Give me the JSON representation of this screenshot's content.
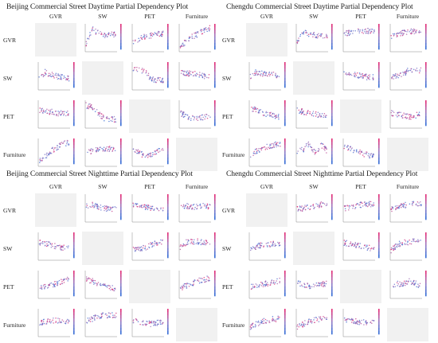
{
  "figure": {
    "variables": [
      "GVR",
      "SW",
      "PET",
      "Furniture"
    ],
    "point_colors": {
      "low": "#3b6fd6",
      "mid": "#9b7fc4",
      "high": "#e0307a"
    },
    "empty_cell_color": "#f1f1f1",
    "panels": [
      {
        "id": "bj-day",
        "title": "Beijing Commercial Street Daytime Partial Dependency Plot"
      },
      {
        "id": "cd-day",
        "title": "Chengdu Commercial Street Daytime Partial Dependency Plot"
      },
      {
        "id": "bj-night",
        "title": "Beijing Commercial Street Nighttime Partial Dependency Plot"
      },
      {
        "id": "cd-night",
        "title": "Chengdu Commercial Street Nighttime Partial Dependency Plot"
      }
    ]
  },
  "chart_data": {
    "type": "scatter",
    "layout": "4 panels, each a 4x4 grid of SHAP partial dependence scatter plots; diagonal cells empty",
    "variables": [
      "GVR",
      "SW",
      "PET",
      "Furniture"
    ],
    "cells": [
      {
        "panel": "bj-day",
        "row": "GVR",
        "col": "SW",
        "trend": [
          0.2,
          0.8,
          0.65,
          0.55,
          0.6,
          0.58
        ]
      },
      {
        "panel": "bj-day",
        "row": "GVR",
        "col": "PET",
        "trend": [
          0.3,
          0.4,
          0.5,
          0.55,
          0.6,
          0.62
        ]
      },
      {
        "panel": "bj-day",
        "row": "GVR",
        "col": "Furniture",
        "trend": [
          0.1,
          0.3,
          0.5,
          0.6,
          0.75,
          0.85
        ]
      },
      {
        "panel": "bj-day",
        "row": "SW",
        "col": "GVR",
        "trend": [
          0.3,
          0.6,
          0.5,
          0.45,
          0.4,
          0.35
        ]
      },
      {
        "panel": "bj-day",
        "row": "SW",
        "col": "PET",
        "trend": [
          0.7,
          0.7,
          0.6,
          0.35,
          0.3,
          0.3
        ]
      },
      {
        "panel": "bj-day",
        "row": "SW",
        "col": "Furniture",
        "trend": [
          0.6,
          0.55,
          0.55,
          0.5,
          0.45,
          0.45
        ]
      },
      {
        "panel": "bj-day",
        "row": "PET",
        "col": "GVR",
        "trend": [
          0.6,
          0.55,
          0.55,
          0.5,
          0.5,
          0.5
        ]
      },
      {
        "panel": "bj-day",
        "row": "PET",
        "col": "SW",
        "trend": [
          0.8,
          0.75,
          0.5,
          0.3,
          0.25,
          0.25
        ]
      },
      {
        "panel": "bj-day",
        "row": "PET",
        "col": "Furniture",
        "trend": [
          0.5,
          0.4,
          0.3,
          0.3,
          0.35,
          0.4
        ]
      },
      {
        "panel": "bj-day",
        "row": "Furniture",
        "col": "GVR",
        "trend": [
          0.1,
          0.3,
          0.5,
          0.65,
          0.8,
          0.85
        ]
      },
      {
        "panel": "bj-day",
        "row": "Furniture",
        "col": "SW",
        "trend": [
          0.4,
          0.5,
          0.55,
          0.6,
          0.6,
          0.55
        ]
      },
      {
        "panel": "bj-day",
        "row": "Furniture",
        "col": "PET",
        "trend": [
          0.5,
          0.45,
          0.3,
          0.35,
          0.5,
          0.55
        ]
      },
      {
        "panel": "cd-day",
        "row": "GVR",
        "col": "SW",
        "trend": [
          0.3,
          0.7,
          0.6,
          0.55,
          0.5,
          0.5
        ]
      },
      {
        "panel": "cd-day",
        "row": "GVR",
        "col": "PET",
        "trend": [
          0.6,
          0.65,
          0.7,
          0.7,
          0.72,
          0.7
        ]
      },
      {
        "panel": "cd-day",
        "row": "GVR",
        "col": "Furniture",
        "trend": [
          0.5,
          0.6,
          0.65,
          0.7,
          0.72,
          0.75
        ]
      },
      {
        "panel": "cd-day",
        "row": "SW",
        "col": "GVR",
        "trend": [
          0.4,
          0.6,
          0.55,
          0.5,
          0.5,
          0.45
        ]
      },
      {
        "panel": "cd-day",
        "row": "SW",
        "col": "PET",
        "trend": [
          0.6,
          0.55,
          0.5,
          0.45,
          0.4,
          0.4
        ]
      },
      {
        "panel": "cd-day",
        "row": "SW",
        "col": "Furniture",
        "trend": [
          0.4,
          0.45,
          0.5,
          0.7,
          0.65,
          0.7
        ]
      },
      {
        "panel": "cd-day",
        "row": "PET",
        "col": "GVR",
        "trend": [
          0.7,
          0.6,
          0.5,
          0.45,
          0.4,
          0.35
        ]
      },
      {
        "panel": "cd-day",
        "row": "PET",
        "col": "SW",
        "trend": [
          0.6,
          0.55,
          0.5,
          0.45,
          0.4,
          0.4
        ]
      },
      {
        "panel": "cd-day",
        "row": "PET",
        "col": "Furniture",
        "trend": [
          0.5,
          0.45,
          0.4,
          0.35,
          0.4,
          0.45
        ]
      },
      {
        "panel": "cd-day",
        "row": "Furniture",
        "col": "GVR",
        "trend": [
          0.3,
          0.5,
          0.6,
          0.7,
          0.75,
          0.8
        ]
      },
      {
        "panel": "cd-day",
        "row": "Furniture",
        "col": "SW",
        "trend": [
          0.5,
          0.55,
          0.8,
          0.4,
          0.75,
          0.5
        ]
      },
      {
        "panel": "cd-day",
        "row": "Furniture",
        "col": "PET",
        "trend": [
          0.7,
          0.6,
          0.5,
          0.4,
          0.35,
          0.3
        ]
      },
      {
        "panel": "bj-night",
        "row": "GVR",
        "col": "SW",
        "trend": [
          0.5,
          0.6,
          0.5,
          0.45,
          0.4,
          0.4
        ]
      },
      {
        "panel": "bj-night",
        "row": "GVR",
        "col": "PET",
        "trend": [
          0.55,
          0.5,
          0.5,
          0.45,
          0.45,
          0.4
        ]
      },
      {
        "panel": "bj-night",
        "row": "GVR",
        "col": "Furniture",
        "trend": [
          0.5,
          0.55,
          0.5,
          0.5,
          0.55,
          0.5
        ]
      },
      {
        "panel": "bj-night",
        "row": "SW",
        "col": "GVR",
        "trend": [
          0.6,
          0.55,
          0.5,
          0.45,
          0.4,
          0.4
        ]
      },
      {
        "panel": "bj-night",
        "row": "SW",
        "col": "PET",
        "trend": [
          0.3,
          0.35,
          0.4,
          0.5,
          0.6,
          0.65
        ]
      },
      {
        "panel": "bj-night",
        "row": "SW",
        "col": "Furniture",
        "trend": [
          0.4,
          0.6,
          0.65,
          0.65,
          0.6,
          0.6
        ]
      },
      {
        "panel": "bj-night",
        "row": "PET",
        "col": "GVR",
        "trend": [
          0.3,
          0.35,
          0.4,
          0.5,
          0.6,
          0.7
        ]
      },
      {
        "panel": "bj-night",
        "row": "PET",
        "col": "SW",
        "trend": [
          0.65,
          0.6,
          0.5,
          0.45,
          0.35,
          0.3
        ]
      },
      {
        "panel": "bj-night",
        "row": "PET",
        "col": "Furniture",
        "trend": [
          0.3,
          0.4,
          0.5,
          0.6,
          0.65,
          0.7
        ]
      },
      {
        "panel": "bj-night",
        "row": "Furniture",
        "col": "GVR",
        "trend": [
          0.4,
          0.5,
          0.55,
          0.55,
          0.5,
          0.5
        ]
      },
      {
        "panel": "bj-night",
        "row": "Furniture",
        "col": "SW",
        "trend": [
          0.5,
          0.6,
          0.7,
          0.75,
          0.75,
          0.75
        ]
      },
      {
        "panel": "bj-night",
        "row": "Furniture",
        "col": "PET",
        "trend": [
          0.55,
          0.5,
          0.45,
          0.4,
          0.45,
          0.5
        ]
      },
      {
        "panel": "cd-night",
        "row": "GVR",
        "col": "SW",
        "trend": [
          0.4,
          0.45,
          0.5,
          0.55,
          0.6,
          0.6
        ]
      },
      {
        "panel": "cd-night",
        "row": "GVR",
        "col": "PET",
        "trend": [
          0.45,
          0.5,
          0.55,
          0.6,
          0.6,
          0.62
        ]
      },
      {
        "panel": "cd-night",
        "row": "GVR",
        "col": "Furniture",
        "trend": [
          0.4,
          0.5,
          0.55,
          0.6,
          0.62,
          0.65
        ]
      },
      {
        "panel": "cd-night",
        "row": "SW",
        "col": "GVR",
        "trend": [
          0.4,
          0.45,
          0.5,
          0.5,
          0.55,
          0.55
        ]
      },
      {
        "panel": "cd-night",
        "row": "SW",
        "col": "PET",
        "trend": [
          0.6,
          0.55,
          0.5,
          0.45,
          0.4,
          0.35
        ]
      },
      {
        "panel": "cd-night",
        "row": "SW",
        "col": "Furniture",
        "trend": [
          0.3,
          0.5,
          0.6,
          0.62,
          0.65,
          0.65
        ]
      },
      {
        "panel": "cd-night",
        "row": "PET",
        "col": "GVR",
        "trend": [
          0.35,
          0.4,
          0.45,
          0.5,
          0.55,
          0.6
        ]
      },
      {
        "panel": "cd-night",
        "row": "PET",
        "col": "SW",
        "trend": [
          0.55,
          0.45,
          0.4,
          0.4,
          0.45,
          0.5
        ]
      },
      {
        "panel": "cd-night",
        "row": "PET",
        "col": "Furniture",
        "trend": [
          0.4,
          0.5,
          0.45,
          0.6,
          0.5,
          0.4
        ]
      },
      {
        "panel": "cd-night",
        "row": "Furniture",
        "col": "GVR",
        "trend": [
          0.3,
          0.4,
          0.5,
          0.55,
          0.6,
          0.6
        ]
      },
      {
        "panel": "cd-night",
        "row": "Furniture",
        "col": "SW",
        "trend": [
          0.3,
          0.4,
          0.5,
          0.55,
          0.6,
          0.65
        ]
      },
      {
        "panel": "cd-night",
        "row": "Furniture",
        "col": "PET",
        "trend": [
          0.6,
          0.55,
          0.5,
          0.45,
          0.5,
          0.55
        ]
      }
    ]
  }
}
